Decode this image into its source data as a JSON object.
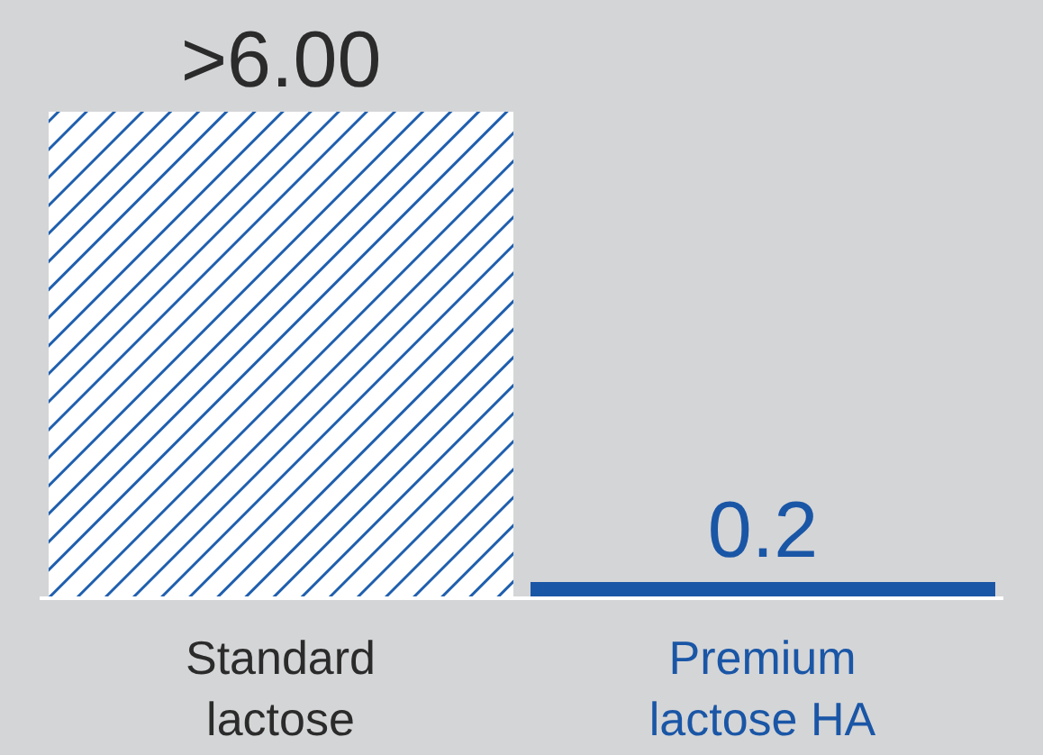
{
  "chart_data": {
    "type": "bar",
    "categories": [
      "Standard lactose",
      "Premium lactose HA"
    ],
    "values": [
      6,
      0.2
    ],
    "value_labels": [
      ">6.00",
      "0.2"
    ],
    "colors": [
      "#1f5fae",
      "#1a56a6"
    ]
  }
}
